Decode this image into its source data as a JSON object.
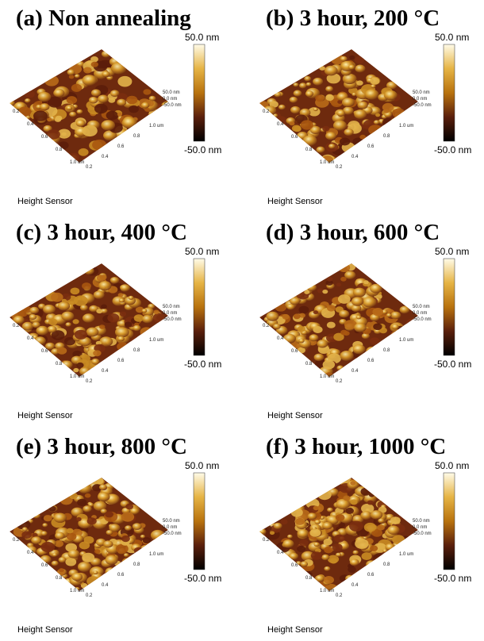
{
  "panels": [
    {
      "title": "(a) Non annealing",
      "scale_max": "50.0 nm",
      "scale_min": "-50.0 nm",
      "caption": "Height Sensor",
      "z_ticks": [
        "50.0 nm",
        "0.0 nm",
        "-50.0 nm"
      ],
      "x_ticks": [
        "0.2",
        "0.4",
        "0.6",
        "0.8",
        "1.0 um"
      ],
      "y_ticks": [
        "0.2",
        "0.4",
        "0.6",
        "0.8",
        "1.0 um"
      ]
    },
    {
      "title": "(b) 3 hour, 200 °C",
      "scale_max": "50.0 nm",
      "scale_min": "-50.0 nm",
      "caption": "Height Sensor",
      "z_ticks": [
        "50.0 nm",
        "0.0 nm",
        "-50.0 nm"
      ],
      "x_ticks": [
        "0.2",
        "0.4",
        "0.6",
        "0.8",
        "1.0 um"
      ],
      "y_ticks": [
        "0.2",
        "0.4",
        "0.6",
        "0.8",
        "1.0 um"
      ]
    },
    {
      "title": "(c) 3 hour, 400 °C",
      "scale_max": "50.0 nm",
      "scale_min": "-50.0 nm",
      "caption": "Height Sensor",
      "z_ticks": [
        "50.0 nm",
        "0.0 nm",
        "-50.0 nm"
      ],
      "x_ticks": [
        "0.2",
        "0.4",
        "0.6",
        "0.8",
        "1.0 um"
      ],
      "y_ticks": [
        "0.2",
        "0.4",
        "0.6",
        "0.8",
        "1.0 um"
      ]
    },
    {
      "title": "(d) 3 hour, 600 °C",
      "scale_max": "50.0 nm",
      "scale_min": "-50.0 nm",
      "caption": "Height Sensor",
      "z_ticks": [
        "50.0 nm",
        "0.0 nm",
        "-50.0 nm"
      ],
      "x_ticks": [
        "0.2",
        "0.4",
        "0.6",
        "0.8",
        "1.0 um"
      ],
      "y_ticks": [
        "0.2",
        "0.4",
        "0.6",
        "0.8",
        "1.0 um"
      ]
    },
    {
      "title": "(e) 3 hour, 800 °C",
      "scale_max": "50.0 nm",
      "scale_min": "-50.0 nm",
      "caption": "Height Sensor",
      "z_ticks": [
        "50.0 nm",
        "0.0 nm",
        "-50.0 nm"
      ],
      "x_ticks": [
        "0.2",
        "0.4",
        "0.6",
        "0.8",
        "1.0 um"
      ],
      "y_ticks": [
        "0.2",
        "0.4",
        "0.6",
        "0.8",
        "1.0 um"
      ]
    },
    {
      "title": "(f) 3 hour, 1000 °C",
      "scale_max": "50.0 nm",
      "scale_min": "-50.0 nm",
      "caption": "Height Sensor",
      "z_ticks": [
        "50.0 nm",
        "0.0 nm",
        "-50.0 nm"
      ],
      "x_ticks": [
        "0.2",
        "0.4",
        "0.6",
        "0.8",
        "1.0 um"
      ],
      "y_ticks": [
        "0.2",
        "0.4",
        "0.6",
        "0.8",
        "1.0 um"
      ]
    }
  ]
}
